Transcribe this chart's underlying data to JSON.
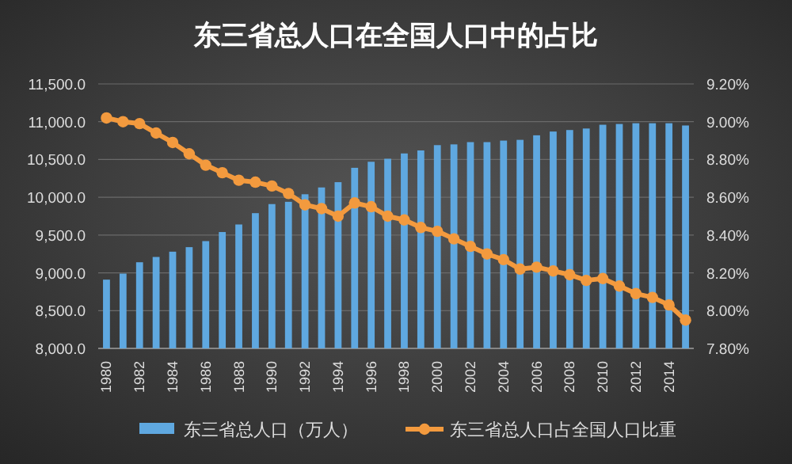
{
  "chart_data": {
    "type": "bar",
    "title": "东三省总人口在全国人口中的占比",
    "categories": [
      "1980",
      null,
      "1982",
      null,
      "1984",
      null,
      "1986",
      null,
      "1988",
      null,
      "1990",
      null,
      "1992",
      null,
      "1994",
      null,
      "1996",
      null,
      "1998",
      null,
      "2000",
      null,
      "2002",
      null,
      "2004",
      null,
      "2006",
      null,
      "2008",
      null,
      "2010",
      null,
      "2012",
      null,
      "2014",
      null
    ],
    "series": [
      {
        "name": "东三省总人口（万人）",
        "color": "#5fa8e0",
        "values": [
          8910,
          8990,
          9140,
          9210,
          9280,
          9340,
          9420,
          9540,
          9640,
          9790,
          9910,
          9940,
          10040,
          10130,
          10200,
          10390,
          10470,
          10510,
          10580,
          10620,
          10690,
          10700,
          10730,
          10730,
          10750,
          10760,
          10820,
          10870,
          10890,
          10910,
          10960,
          10970,
          10980,
          10980,
          10980,
          10950
        ]
      },
      {
        "name": "东三省总人口占全国人口比重",
        "type": "line",
        "axis": "y2",
        "marker": "circle",
        "color": "#f39a3e",
        "values": [
          9.02,
          9.0,
          8.99,
          8.94,
          8.89,
          8.83,
          8.77,
          8.73,
          8.69,
          8.68,
          8.66,
          8.62,
          8.56,
          8.54,
          8.5,
          8.57,
          8.55,
          8.5,
          8.48,
          8.44,
          8.42,
          8.38,
          8.34,
          8.3,
          8.27,
          8.22,
          8.23,
          8.21,
          8.19,
          8.16,
          8.17,
          8.13,
          8.09,
          8.07,
          8.03,
          7.95
        ]
      }
    ],
    "ylim": [
      8000,
      11500
    ],
    "yticks": [
      {
        "value": 8000,
        "label": "8,000.0"
      },
      {
        "value": 8500,
        "label": "8,500.0"
      },
      {
        "value": 9000,
        "label": "9,000.0"
      },
      {
        "value": 9500,
        "label": "9,500.0"
      },
      {
        "value": 10000,
        "label": "10,000.0"
      },
      {
        "value": 10500,
        "label": "10,500.0"
      },
      {
        "value": 11000,
        "label": "11,000.0"
      },
      {
        "value": 11500,
        "label": "11,500.0"
      }
    ],
    "y2lim": [
      7.8,
      9.2
    ],
    "y2ticks": [
      {
        "value": 7.8,
        "label": "7.80%"
      },
      {
        "value": 8.0,
        "label": "8.00%"
      },
      {
        "value": 8.2,
        "label": "8.20%"
      },
      {
        "value": 8.4,
        "label": "8.40%"
      },
      {
        "value": 8.6,
        "label": "8.60%"
      },
      {
        "value": 8.8,
        "label": "8.80%"
      },
      {
        "value": 9.0,
        "label": "9.00%"
      },
      {
        "value": 9.2,
        "label": "9.20%"
      }
    ],
    "grid": "y",
    "legend": "bottom"
  }
}
